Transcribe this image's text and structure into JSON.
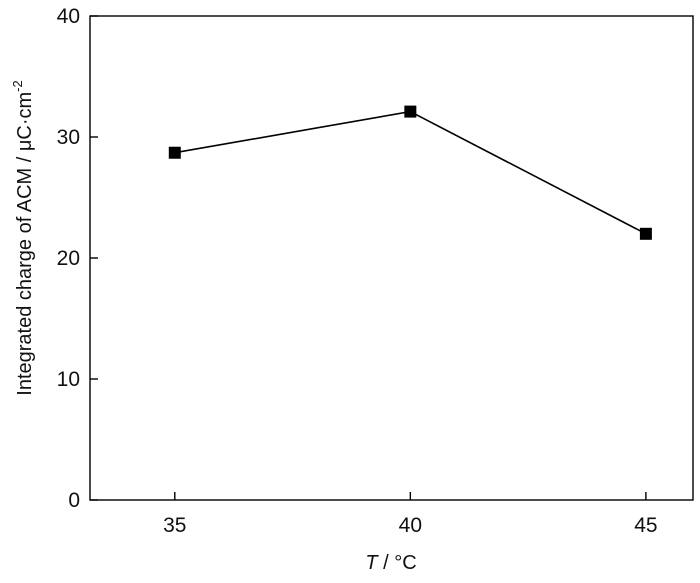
{
  "chart_data": {
    "type": "line",
    "title": "",
    "x": [
      35,
      40,
      45
    ],
    "xlim": [
      33.2,
      46
    ],
    "ylim": [
      0,
      40
    ],
    "x_ticks": [
      35,
      40,
      45
    ],
    "y_ticks": [
      0,
      10,
      20,
      30,
      40
    ],
    "x_tick_labels": [
      "35",
      "40",
      "45"
    ],
    "y_tick_labels": [
      "0",
      "10",
      "20",
      "30",
      "40"
    ],
    "xlabel_var": "T",
    "xlabel_unit": " / °C",
    "ylabel_text": "Integrated charge of ACM / μC·cm",
    "ylabel_sup": "-2",
    "series": [
      {
        "values": [
          28.7,
          32.1,
          22.0
        ],
        "marker": "square",
        "color": "#000000"
      }
    ],
    "grid": false,
    "legend": "none"
  }
}
